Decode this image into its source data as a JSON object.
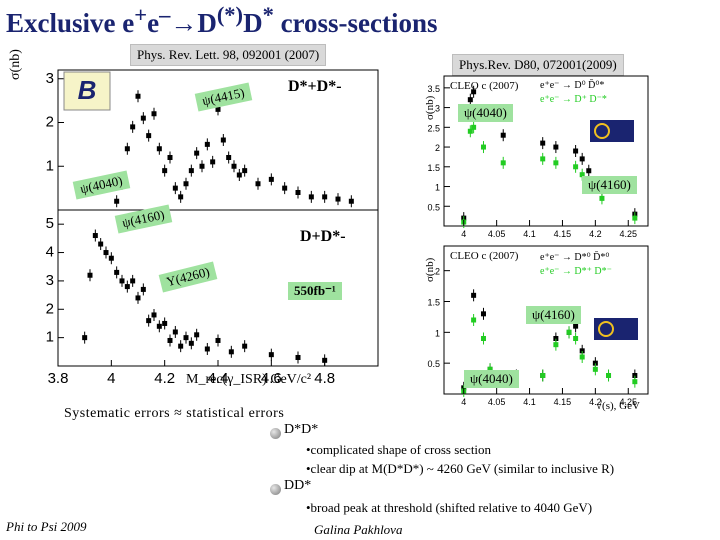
{
  "title": {
    "base": "Exclusive e",
    "sup1": "+",
    "e": "e",
    "sup2": "–",
    "arrow": "→D",
    "sup3": "(*)",
    "d": "D",
    "sup4": "*",
    "tail": " cross-sections"
  },
  "refs": {
    "left": "Phys. Rev. Lett. 98, 092001 (2007)",
    "right": "Phys.Rev. D80, 072001(2009)"
  },
  "left_labels": {
    "dsd": "D*+D*-",
    "psi4415": "ψ(4415)",
    "psi4040": "ψ(4040)",
    "psi4160": "ψ(4160)",
    "dd": "D+D*-",
    "y4260": "Y(4260)",
    "lumi": "550fb⁻¹",
    "sigma_axis": "σ(nb)",
    "x_axis": "M_rec(γ_ISR) GeV/c²"
  },
  "right_labels": {
    "psi4040_top": "ψ(4040)",
    "psi4160_top": "ψ(4160)",
    "psi4160_bot": "ψ(4160)",
    "psi4040_bot": "ψ(4040)",
    "cleo": "CLEO c (2007)",
    "leg_top_a": "e⁺e⁻ → D⁰ D̄⁰*",
    "leg_top_b": "e⁺e⁻ → D⁺ D⁻*",
    "leg_bot_a": "e⁺e⁻ → D*⁰ D̄*⁰",
    "leg_bot_b": "e⁺e⁻ → D*⁺ D*⁻",
    "sigma_axis": "σ(nb)",
    "x_axis": "√(s), GeV"
  },
  "text": {
    "systematic": "Systematic errors ≈ statistical errors",
    "dd_heading": "D*D*",
    "dd_b1": "•complicated shape of cross section",
    "dd_b2": "•clear dip at M(D*D*) ~ 4260 GeV (similar to inclusive R)",
    "d_heading": "DD*",
    "d_b1": "•broad peak at threshold (shifted relative to 4040 GeV)",
    "footer_left": "Phi to Psi 2009",
    "footer_right": "Galina Pakhlova"
  },
  "colors": {
    "title": "#1a2470",
    "cleo_green": "#22cc22",
    "ref_bg": "#d9d9d9",
    "label_green": "#9fe29f"
  },
  "chart_data": [
    {
      "type": "scatter",
      "title": "D*+D*-",
      "xlabel": "M_rec(γ_ISR) GeV/c²",
      "ylabel": "σ(nb)",
      "xlim": [
        3.8,
        5.0
      ],
      "ylim": [
        0,
        3.2
      ],
      "xticks": [
        "3.8",
        "4",
        "4.2",
        "4.4",
        "4.6",
        "4.8"
      ],
      "yticks": [
        "1",
        "2",
        "3"
      ],
      "series": [
        {
          "x": [
            4.02,
            4.04,
            4.06,
            4.08,
            4.1,
            4.12,
            4.14,
            4.16,
            4.18,
            4.2,
            4.22,
            4.24,
            4.26,
            4.28,
            4.3,
            4.32,
            4.34,
            4.36,
            4.38,
            4.4,
            4.42,
            4.44,
            4.46,
            4.48,
            4.5,
            4.55,
            4.6,
            4.65,
            4.7,
            4.75,
            4.8,
            4.85,
            4.9
          ],
          "y": [
            0.2,
            0.6,
            1.4,
            1.9,
            2.6,
            2.1,
            1.7,
            2.2,
            1.4,
            0.9,
            1.2,
            0.5,
            0.3,
            0.6,
            0.9,
            1.3,
            1.0,
            1.5,
            1.1,
            2.3,
            1.6,
            1.2,
            1.0,
            0.8,
            0.9,
            0.6,
            0.7,
            0.5,
            0.4,
            0.3,
            0.3,
            0.25,
            0.2
          ]
        }
      ]
    },
    {
      "type": "scatter",
      "title": "D+D*-",
      "xlabel": "M_rec(γ_ISR) GeV/c²",
      "ylabel": "σ(nb)",
      "xlim": [
        3.8,
        5.0
      ],
      "ylim": [
        0,
        5.5
      ],
      "xticks": [
        "3.8",
        "4",
        "4.2",
        "4.4",
        "4.6",
        "4.8"
      ],
      "yticks": [
        "1",
        "2",
        "3",
        "4",
        "5"
      ],
      "series": [
        {
          "x": [
            3.9,
            3.92,
            3.94,
            3.96,
            3.98,
            4.0,
            4.02,
            4.04,
            4.06,
            4.08,
            4.1,
            4.12,
            4.14,
            4.16,
            4.18,
            4.2,
            4.22,
            4.24,
            4.26,
            4.28,
            4.3,
            4.32,
            4.36,
            4.4,
            4.45,
            4.5,
            4.6,
            4.7,
            4.8
          ],
          "y": [
            1.0,
            3.2,
            4.6,
            4.3,
            4.0,
            3.8,
            3.3,
            3.0,
            2.8,
            3.0,
            2.4,
            2.7,
            1.6,
            1.8,
            1.4,
            1.5,
            0.9,
            1.2,
            0.7,
            1.0,
            0.8,
            1.1,
            0.6,
            0.9,
            0.5,
            0.7,
            0.4,
            0.3,
            0.2
          ]
        }
      ]
    },
    {
      "type": "scatter",
      "title": "CLEO c (2007)",
      "xlabel": "√(s), GeV",
      "ylabel": "σ(nb)",
      "xlim": [
        3.97,
        4.28
      ],
      "ylim": [
        0,
        3.8
      ],
      "xticks": [
        "4",
        "4.05",
        "4.1",
        "4.15",
        "4.2",
        "4.25"
      ],
      "yticks": [
        "0.5",
        "1",
        "1.5",
        "2",
        "2.5",
        "3",
        "3.5"
      ],
      "series": [
        {
          "name": "e⁺e⁻ → D⁰ D̄⁰*",
          "x": [
            4.0,
            4.01,
            4.015,
            4.03,
            4.06,
            4.12,
            4.14,
            4.17,
            4.18,
            4.19,
            4.21,
            4.26
          ],
          "y": [
            0.2,
            3.2,
            3.4,
            2.9,
            2.3,
            2.1,
            2.0,
            1.9,
            1.7,
            1.4,
            0.9,
            0.3
          ]
        },
        {
          "name": "e⁺e⁻ → D⁺ D⁻*",
          "x": [
            4.0,
            4.01,
            4.015,
            4.03,
            4.06,
            4.12,
            4.14,
            4.17,
            4.18,
            4.19,
            4.21,
            4.26
          ],
          "y": [
            0.1,
            2.4,
            2.5,
            2.0,
            1.6,
            1.7,
            1.6,
            1.5,
            1.3,
            1.1,
            0.7,
            0.2
          ]
        }
      ]
    },
    {
      "type": "scatter",
      "title": "CLEO c (2007)",
      "xlabel": "√(s), GeV",
      "ylabel": "σ(nb)",
      "xlim": [
        3.97,
        4.28
      ],
      "ylim": [
        0,
        2.4
      ],
      "xticks": [
        "4",
        "4.05",
        "4.1",
        "4.15",
        "4.2",
        "4.25"
      ],
      "yticks": [
        "0.5",
        "1",
        "1.5",
        "2"
      ],
      "series": [
        {
          "name": "e⁺e⁻ → D*⁰ D̄*⁰",
          "x": [
            4.0,
            4.015,
            4.03,
            4.04,
            4.06,
            4.08,
            4.12,
            4.14,
            4.16,
            4.17,
            4.18,
            4.2,
            4.22,
            4.26
          ],
          "y": [
            0.1,
            1.6,
            1.3,
            0.4,
            0.2,
            0.3,
            0.3,
            0.9,
            1.0,
            1.1,
            0.7,
            0.5,
            0.3,
            0.3
          ]
        },
        {
          "name": "e⁺e⁻ → D*⁺ D*⁻",
          "x": [
            4.0,
            4.015,
            4.03,
            4.04,
            4.06,
            4.08,
            4.12,
            4.14,
            4.16,
            4.17,
            4.18,
            4.2,
            4.22,
            4.26
          ],
          "y": [
            0.05,
            1.2,
            0.9,
            0.4,
            0.2,
            0.25,
            0.3,
            0.8,
            1.0,
            0.9,
            0.6,
            0.4,
            0.3,
            0.2
          ]
        }
      ]
    }
  ]
}
